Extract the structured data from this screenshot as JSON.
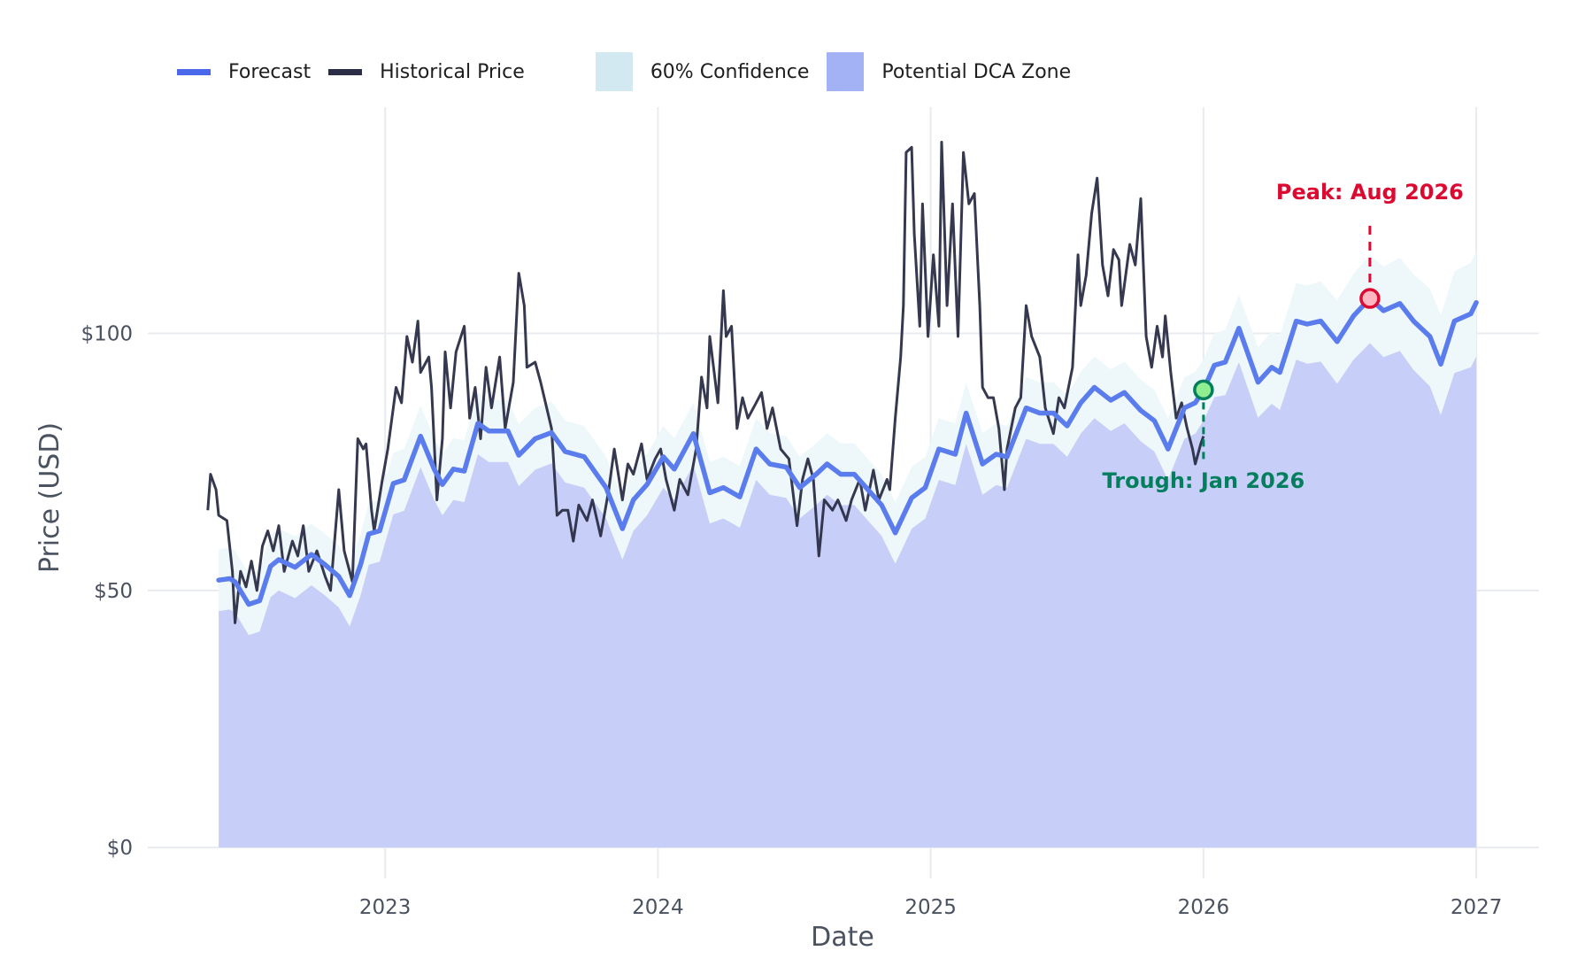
{
  "legend": {
    "forecast": "Forecast",
    "historical": "Historical Price",
    "confidence": "60% Confidence",
    "dca_zone": "Potential DCA Zone"
  },
  "colors": {
    "forecast": "#5a7ced",
    "forecast_legend": "#4a68ea",
    "historical": "#2a2d45",
    "confidence": "#d3e9f1",
    "confidence_fill": "#eef7fa",
    "dca_zone": "#a3b1f5",
    "dca_fill": "#c7cff8",
    "trough": "#037f5e",
    "trough_marker": "#90ee90",
    "peak": "#dc0a31",
    "peak_marker": "#ffb6c1",
    "grid": "#e8ecf0",
    "tick_text": "#4a5260"
  },
  "chart_data": {
    "type": "line",
    "xlabel": "Date",
    "ylabel": "Price (USD)",
    "xlim": [
      2022.13,
      2027.23
    ],
    "ylim": [
      -6,
      144
    ],
    "grid": true,
    "legend_position": "top",
    "x_ticks": [
      {
        "value": 2023,
        "label": "2023"
      },
      {
        "value": 2024,
        "label": "2024"
      },
      {
        "value": 2025,
        "label": "2025"
      },
      {
        "value": 2026,
        "label": "2026"
      },
      {
        "value": 2027,
        "label": "2027"
      }
    ],
    "y_ticks": [
      {
        "value": 0,
        "label": "$0"
      },
      {
        "value": 50,
        "label": "$50"
      },
      {
        "value": 100,
        "label": "$100"
      }
    ],
    "historical": {
      "name": "Historical Price",
      "x": [
        2022.35,
        2022.36,
        2022.38,
        2022.39,
        2022.42,
        2022.44,
        2022.45,
        2022.47,
        2022.49,
        2022.51,
        2022.53,
        2022.55,
        2022.57,
        2022.59,
        2022.61,
        2022.63,
        2022.66,
        2022.68,
        2022.7,
        2022.72,
        2022.75,
        2022.78,
        2022.8,
        2022.83,
        2022.85,
        2022.88,
        2022.9,
        2022.92,
        2022.93,
        2022.95,
        2022.96,
        2022.99,
        2023.01,
        2023.04,
        2023.06,
        2023.08,
        2023.1,
        2023.12,
        2023.13,
        2023.16,
        2023.17,
        2023.19,
        2023.21,
        2023.22,
        2023.24,
        2023.26,
        2023.29,
        2023.31,
        2023.33,
        2023.35,
        2023.37,
        2023.39,
        2023.42,
        2023.44,
        2023.47,
        2023.49,
        2023.51,
        2023.52,
        2023.55,
        2023.57,
        2023.61,
        2023.63,
        2023.65,
        2023.67,
        2023.69,
        2023.71,
        2023.74,
        2023.76,
        2023.79,
        2023.82,
        2023.84,
        2023.87,
        2023.89,
        2023.91,
        2023.94,
        2023.96,
        2023.99,
        2024.01,
        2024.03,
        2024.06,
        2024.08,
        2024.11,
        2024.14,
        2024.16,
        2024.18,
        2024.19,
        2024.22,
        2024.24,
        2024.25,
        2024.27,
        2024.29,
        2024.31,
        2024.33,
        2024.36,
        2024.38,
        2024.4,
        2024.42,
        2024.45,
        2024.48,
        2024.51,
        2024.53,
        2024.55,
        2024.57,
        2024.59,
        2024.61,
        2024.64,
        2024.66,
        2024.69,
        2024.71,
        2024.74,
        2024.76,
        2024.79,
        2024.81,
        2024.84,
        2024.85,
        2024.87,
        2024.89,
        2024.9,
        2024.91,
        2024.93,
        2024.94,
        2024.96,
        2024.97,
        2024.99,
        2025.01,
        2025.03,
        2025.04,
        2025.06,
        2025.08,
        2025.1,
        2025.12,
        2025.14,
        2025.16,
        2025.18,
        2025.19,
        2025.21,
        2025.23,
        2025.25,
        2025.27,
        2025.28,
        2025.31,
        2025.33,
        2025.35,
        2025.37,
        2025.4,
        2025.42,
        2025.45,
        2025.47,
        2025.49,
        2025.52,
        2025.54,
        2025.55,
        2025.57,
        2025.59,
        2025.61,
        2025.63,
        2025.65,
        2025.67,
        2025.69,
        2025.7,
        2025.73,
        2025.75,
        2025.77,
        2025.79,
        2025.81,
        2025.83,
        2025.85,
        2025.86,
        2025.88,
        2025.9,
        2025.92,
        2025.94,
        2025.96,
        2025.97,
        2025.99,
        2026.0
      ],
      "y": [
        65.6,
        72.6,
        69.6,
        64.6,
        63.6,
        53.7,
        43.7,
        53.7,
        50.7,
        55.7,
        50,
        58.6,
        61.6,
        57.7,
        62.6,
        53.7,
        59.6,
        56.7,
        62.6,
        53.7,
        57.7,
        52.7,
        50,
        69.6,
        57.7,
        51.7,
        79.5,
        77.5,
        78.5,
        65.6,
        61.6,
        71.6,
        77.5,
        89.5,
        86.5,
        99.4,
        94.4,
        102.4,
        92.4,
        95.4,
        89.5,
        67.6,
        79.5,
        96.4,
        85.5,
        96.4,
        101.4,
        83.5,
        89.5,
        79.5,
        93.4,
        85.5,
        95.4,
        81.5,
        90.5,
        111.7,
        105.4,
        93.4,
        94.4,
        90.5,
        81.5,
        64.6,
        65.6,
        65.6,
        59.6,
        66.6,
        63.6,
        67.6,
        60.6,
        69.6,
        77.5,
        67.6,
        74.6,
        72.6,
        78.5,
        71.6,
        75.6,
        77.5,
        71.6,
        65.6,
        71.6,
        68.6,
        77.5,
        91.5,
        85.5,
        99.4,
        86.5,
        108.3,
        99.4,
        101.4,
        81.5,
        87.5,
        83.5,
        86.5,
        88.5,
        81.5,
        85.5,
        77.5,
        75.6,
        62.6,
        71.6,
        75.6,
        71.6,
        56.7,
        67.6,
        65.6,
        67.6,
        63.6,
        67.6,
        71.6,
        65.6,
        73.4,
        67.6,
        71.6,
        69.6,
        83.5,
        95.4,
        105.4,
        135.2,
        136.2,
        119.3,
        101.4,
        125.2,
        99.4,
        115.3,
        101.4,
        137.2,
        105.4,
        125.2,
        99.4,
        135.2,
        125.2,
        127.2,
        105.4,
        89.5,
        87.5,
        87.5,
        81.5,
        69.6,
        77.5,
        85.5,
        87.5,
        105.4,
        99.4,
        95.4,
        85.5,
        80.5,
        87.5,
        85.5,
        93.4,
        115.3,
        105.4,
        111.3,
        123.3,
        130.2,
        113.3,
        107.3,
        116.3,
        114.3,
        105.4,
        117.3,
        113.3,
        126.2,
        99.4,
        93.4,
        101.4,
        95.4,
        103.4,
        92.4,
        83.5,
        86.5,
        81.5,
        77.5,
        74.6,
        78.5,
        80
      ]
    },
    "forecast": {
      "name": "Forecast",
      "x": [
        2022.39,
        2022.43,
        2022.45,
        2022.5,
        2022.54,
        2022.58,
        2022.61,
        2022.67,
        2022.73,
        2022.78,
        2022.83,
        2022.87,
        2022.91,
        2022.94,
        2022.98,
        2023.03,
        2023.07,
        2023.13,
        2023.18,
        2023.21,
        2023.25,
        2023.29,
        2023.34,
        2023.38,
        2023.45,
        2023.49,
        2023.55,
        2023.61,
        2023.66,
        2023.73,
        2023.81,
        2023.87,
        2023.91,
        2023.96,
        2024.02,
        2024.06,
        2024.13,
        2024.19,
        2024.24,
        2024.3,
        2024.36,
        2024.41,
        2024.47,
        2024.52,
        2024.58,
        2024.62,
        2024.67,
        2024.72,
        2024.77,
        2024.82,
        2024.87,
        2024.93,
        2024.98,
        2025.03,
        2025.09,
        2025.13,
        2025.19,
        2025.24,
        2025.28,
        2025.35,
        2025.4,
        2025.45,
        2025.5,
        2025.55,
        2025.6,
        2025.66,
        2025.71,
        2025.77,
        2025.82,
        2025.87,
        2025.93,
        2025.97,
        2026.0,
        2026.04,
        2026.08,
        2026.13,
        2026.2,
        2026.25,
        2026.28,
        2026.34,
        2026.38,
        2026.43,
        2026.49,
        2026.55,
        2026.61,
        2026.66,
        2026.72,
        2026.77,
        2026.83,
        2026.87,
        2026.92,
        2026.98,
        2027.0
      ],
      "y": [
        52,
        52.3,
        51.7,
        47.3,
        48,
        54.7,
        56,
        54.5,
        57,
        55,
        52.7,
        49,
        55,
        61,
        61.6,
        70.8,
        71.5,
        80,
        73.6,
        70.6,
        73.6,
        73.2,
        82.5,
        81,
        81,
        76.3,
        79.5,
        80.7,
        77,
        76,
        70,
        62,
        67.6,
        70.6,
        76,
        73.6,
        80.5,
        69,
        70,
        68.2,
        77.5,
        74.6,
        74,
        70,
        72.6,
        74.6,
        72.6,
        72.6,
        69.6,
        66.6,
        61.2,
        68,
        70,
        77.5,
        76.5,
        84.5,
        74.6,
        76.5,
        76,
        85.5,
        84.5,
        84.5,
        82,
        86.5,
        89.5,
        87,
        88.5,
        85,
        83,
        77.5,
        85.5,
        86.5,
        89,
        93.8,
        94.4,
        101,
        90.5,
        93.4,
        92.4,
        102.4,
        101.8,
        102.4,
        98.4,
        103.4,
        106.8,
        104.4,
        105.8,
        102.4,
        99.4,
        94,
        102.4,
        103.8,
        106
      ],
      "confidence_upper": [
        58,
        58.3,
        57.7,
        53.3,
        54,
        60.7,
        62,
        60.5,
        63,
        61,
        58.7,
        55,
        61,
        67,
        67.6,
        76.8,
        77.5,
        86,
        79.6,
        76.6,
        79.6,
        79.2,
        88.5,
        87,
        87,
        82.3,
        85.5,
        86.7,
        83,
        82,
        76,
        68,
        73.6,
        76.6,
        82,
        79.6,
        86.5,
        75,
        76,
        74.2,
        83.5,
        80.6,
        80,
        76,
        78.6,
        80.6,
        78.6,
        78.6,
        75.6,
        72.6,
        67.2,
        74,
        76,
        83.5,
        82.5,
        90.5,
        80.6,
        82.5,
        82,
        91.5,
        90.5,
        90.5,
        88,
        92.5,
        95.5,
        93,
        94.5,
        91,
        89,
        83.5,
        91.5,
        92.5,
        95,
        100,
        100.7,
        107.5,
        97.3,
        100.4,
        99.5,
        109.8,
        109.3,
        110.1,
        106.4,
        111.6,
        115.2,
        113,
        114.7,
        111.5,
        108.7,
        103.5,
        112.1,
        113.7,
        116
      ],
      "confidence_lower": [
        46,
        46.3,
        45.7,
        41.3,
        42,
        48.7,
        50,
        48.5,
        51,
        49,
        46.7,
        43,
        49,
        55,
        55.6,
        64.8,
        65.5,
        74,
        67.6,
        64.6,
        67.6,
        67.2,
        76.5,
        75,
        75,
        70.3,
        73.5,
        74.7,
        71,
        70,
        64,
        56,
        61.6,
        64.6,
        70,
        67.6,
        74.5,
        63,
        64,
        62.2,
        71.5,
        68.6,
        68,
        64,
        66.6,
        68.6,
        66.6,
        66.6,
        63.6,
        60.6,
        55.2,
        62,
        64,
        71.5,
        70.5,
        78.5,
        68.6,
        70.5,
        70,
        79.5,
        78.5,
        78.5,
        76,
        80.5,
        83.5,
        81,
        82.5,
        79,
        77,
        71.5,
        79.5,
        80.5,
        83,
        87.6,
        88,
        94.4,
        83.6,
        86.3,
        85.1,
        94.9,
        94.1,
        94.5,
        90.2,
        94.9,
        98.1,
        95.4,
        96.6,
        92.9,
        89.7,
        84.1,
        92.3,
        93.4,
        95.5
      ]
    },
    "annotations": {
      "trough": {
        "label": "Trough: Jan 2026",
        "x": 2026.0,
        "y": 89,
        "line_to": 75.5,
        "label_y": 71
      },
      "peak": {
        "label": "Peak: Aug 2026",
        "x": 2026.61,
        "y": 106.8,
        "line_to": 121,
        "label_y": 127.5
      }
    }
  }
}
